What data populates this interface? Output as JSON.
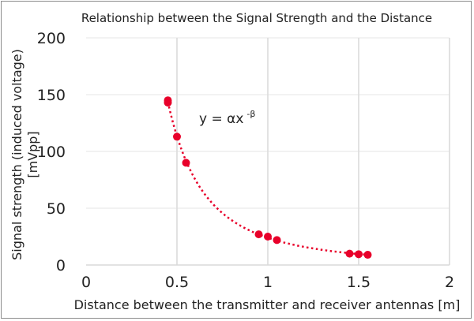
{
  "chart_data": {
    "type": "scatter",
    "title": "Relationship between the Signal Strength and the Distance",
    "xlabel": "Distance between the transmitter and receiver antennas [m]",
    "ylabel_lines": [
      "Signal strength (induced voltage)",
      "[mVpp]"
    ],
    "xlim": [
      0,
      2
    ],
    "ylim": [
      0,
      200
    ],
    "x_ticks": [
      0,
      0.5,
      1,
      1.5,
      2
    ],
    "x_tick_labels": [
      "0",
      "0.5",
      "1",
      "1.5",
      "2"
    ],
    "y_ticks": [
      0,
      50,
      100,
      150,
      200
    ],
    "y_tick_labels": [
      "0",
      "50",
      "100",
      "150",
      "200"
    ],
    "grid": true,
    "points": [
      {
        "x": 0.45,
        "y": 145
      },
      {
        "x": 0.45,
        "y": 143
      },
      {
        "x": 0.5,
        "y": 113
      },
      {
        "x": 0.55,
        "y": 90
      },
      {
        "x": 0.95,
        "y": 27
      },
      {
        "x": 1.0,
        "y": 25
      },
      {
        "x": 1.05,
        "y": 22
      },
      {
        "x": 1.45,
        "y": 10
      },
      {
        "x": 1.5,
        "y": 9.5
      },
      {
        "x": 1.55,
        "y": 9
      }
    ],
    "trendline": {
      "type": "power",
      "style": "dotted",
      "alpha": 24,
      "beta": 2.24,
      "x_range": [
        0.45,
        1.55
      ]
    },
    "annotation": {
      "base": "y = αx",
      "superscript": "-β"
    },
    "colors": {
      "points": "#e8002a",
      "grid": "#d9d9d9",
      "frame": "#8c8c8c"
    }
  }
}
